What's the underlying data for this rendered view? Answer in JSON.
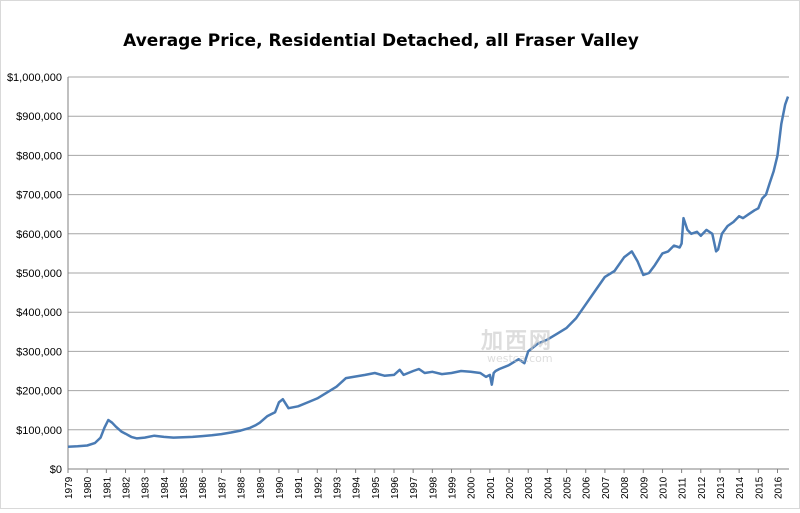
{
  "chart_data": {
    "type": "line",
    "title": "Average Price, Residential Detached, all Fraser Valley",
    "xlabel": "",
    "ylabel": "",
    "ylim": [
      0,
      1000000
    ],
    "yticks": [
      0,
      100000,
      200000,
      300000,
      400000,
      500000,
      600000,
      700000,
      800000,
      900000,
      1000000
    ],
    "ytick_labels": [
      "$0",
      "$100,000",
      "$200,000",
      "$300,000",
      "$400,000",
      "$500,000",
      "$600,000",
      "$700,000",
      "$800,000",
      "$900,000",
      "$1,000,000"
    ],
    "xlim": [
      1979.0,
      2016.6
    ],
    "xtick_labels": [
      "1979",
      "1980",
      "1981",
      "1982",
      "1983",
      "1984",
      "1985",
      "1986",
      "1987",
      "1988",
      "1989",
      "1990",
      "1991",
      "1992",
      "1993",
      "1994",
      "1995",
      "1996",
      "1997",
      "1998",
      "1999",
      "2000",
      "2001",
      "2002",
      "2003",
      "2004",
      "2005",
      "2006",
      "2007",
      "2008",
      "2009",
      "2010",
      "2011",
      "2012",
      "2013",
      "2014",
      "2015",
      "2016"
    ],
    "grid": "horizontal",
    "legend": "none",
    "line_color": "#4a7bb4",
    "series": [
      {
        "x": [
          1979.0,
          1979.5,
          1980.0,
          1980.4,
          1980.7,
          1980.9,
          1981.1,
          1981.3,
          1981.5,
          1981.8,
          1982.0,
          1982.3,
          1982.6,
          1983.0,
          1983.5,
          1984.0,
          1984.5,
          1985.0,
          1985.5,
          1986.0,
          1986.5,
          1987.0,
          1987.5,
          1988.0,
          1988.5,
          1988.8,
          1989.0,
          1989.4,
          1989.6,
          1989.8,
          1990.0,
          1990.2,
          1990.5,
          1991.0,
          1991.5,
          1992.0,
          1992.5,
          1993.0,
          1993.5,
          1994.0,
          1994.5,
          1995.0,
          1995.5,
          1996.0,
          1996.3,
          1996.5,
          1997.0,
          1997.3,
          1997.6,
          1998.0,
          1998.5,
          1999.0,
          1999.5,
          2000.0,
          2000.5,
          2000.8,
          2001.0,
          2001.1,
          2001.2,
          2001.3,
          2001.5,
          2002.0,
          2002.5,
          2002.8,
          2003.0,
          2003.5,
          2004.0,
          2004.5,
          2005.0,
          2005.5,
          2006.0,
          2006.5,
          2007.0,
          2007.5,
          2008.0,
          2008.4,
          2008.7,
          2009.0,
          2009.3,
          2009.6,
          2010.0,
          2010.3,
          2010.6,
          2010.9,
          2011.0,
          2011.1,
          2011.3,
          2011.5,
          2011.8,
          2012.0,
          2012.3,
          2012.6,
          2012.8,
          2012.9,
          2013.1,
          2013.4,
          2013.7,
          2014.0,
          2014.2,
          2014.5,
          2014.8,
          2015.0,
          2015.2,
          2015.4,
          2015.6,
          2015.8,
          2016.0,
          2016.2,
          2016.4,
          2016.55
        ],
        "values": [
          57000,
          58000,
          60000,
          66000,
          80000,
          105000,
          125000,
          118000,
          108000,
          95000,
          90000,
          82000,
          78000,
          80000,
          85000,
          82000,
          80000,
          81000,
          82000,
          84000,
          86000,
          89000,
          93000,
          98000,
          105000,
          112000,
          118000,
          135000,
          140000,
          145000,
          170000,
          178000,
          155000,
          160000,
          170000,
          180000,
          195000,
          210000,
          232000,
          236000,
          240000,
          245000,
          238000,
          240000,
          253000,
          240000,
          250000,
          255000,
          245000,
          248000,
          242000,
          245000,
          250000,
          248000,
          245000,
          235000,
          240000,
          215000,
          245000,
          250000,
          255000,
          265000,
          280000,
          270000,
          300000,
          320000,
          330000,
          345000,
          360000,
          385000,
          420000,
          455000,
          490000,
          505000,
          540000,
          555000,
          530000,
          495000,
          500000,
          520000,
          550000,
          555000,
          570000,
          565000,
          575000,
          640000,
          610000,
          600000,
          605000,
          595000,
          610000,
          600000,
          555000,
          560000,
          600000,
          620000,
          630000,
          645000,
          640000,
          650000,
          660000,
          665000,
          690000,
          700000,
          730000,
          760000,
          800000,
          880000,
          930000,
          950000
        ]
      }
    ]
  },
  "watermark": {
    "main": "加西网",
    "sub": "westca.com"
  }
}
